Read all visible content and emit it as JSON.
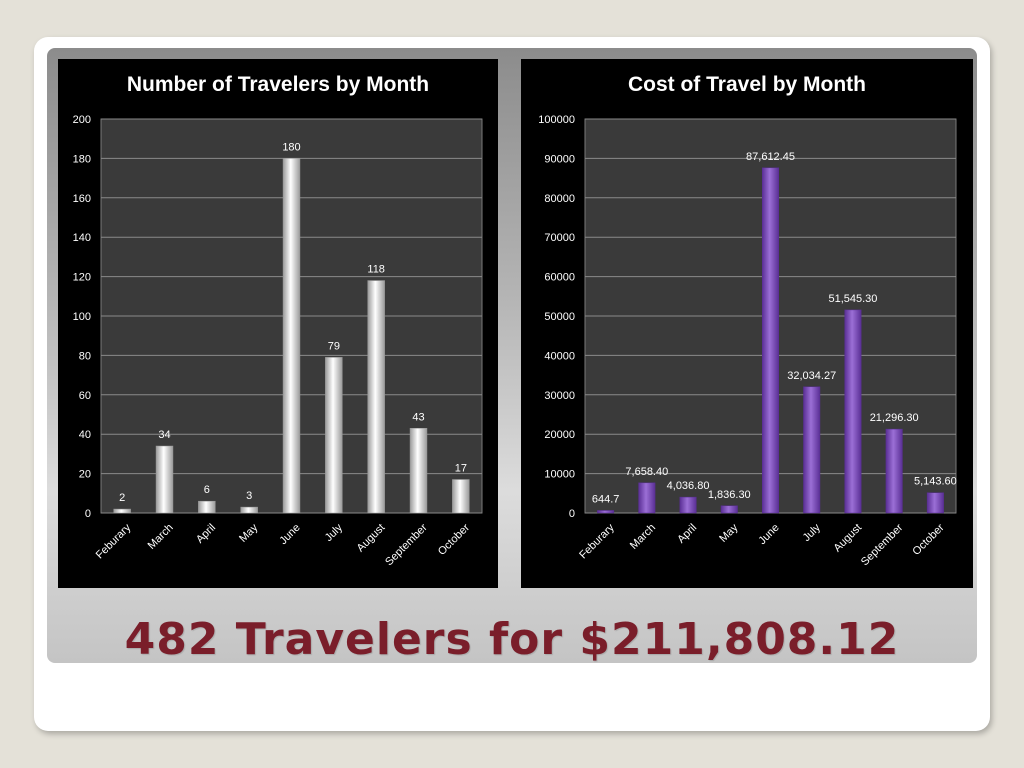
{
  "headline": "482 Travelers for $211,808.12",
  "chart_data": [
    {
      "type": "bar",
      "title": "Number of Travelers by Month",
      "xlabel": "",
      "ylabel": "",
      "categories": [
        "Feburary",
        "March",
        "April",
        "May",
        "June",
        "July",
        "August",
        "September",
        "October"
      ],
      "values": [
        2,
        34,
        6,
        3,
        180,
        79,
        118,
        43,
        17
      ],
      "data_labels": [
        "2",
        "34",
        "6",
        "3",
        "180",
        "79",
        "118",
        "43",
        "17"
      ],
      "ylim": [
        0,
        200
      ],
      "yticks": [
        0,
        20,
        40,
        60,
        80,
        100,
        120,
        140,
        160,
        180,
        200
      ],
      "grid": true,
      "bar_color": "#ffffff",
      "bar_color_dark": "#9a9a9a",
      "background": "#000000",
      "plot_background": "#3a3a3a"
    },
    {
      "type": "bar",
      "title": "Cost of Travel by Month",
      "xlabel": "",
      "ylabel": "",
      "categories": [
        "Feburary",
        "March",
        "April",
        "May",
        "June",
        "July",
        "August",
        "September",
        "October"
      ],
      "values": [
        644.7,
        7658.4,
        4036.8,
        1836.3,
        87612.45,
        32034.27,
        51545.3,
        21296.3,
        5143.6
      ],
      "data_labels": [
        "644.7",
        "7,658.40",
        "4,036.80",
        "1,836.30",
        "87,612.45",
        "32,034.27",
        "51,545.30",
        "21,296.30",
        "5,143.60"
      ],
      "ylim": [
        0,
        100000
      ],
      "yticks": [
        0,
        10000,
        20000,
        30000,
        40000,
        50000,
        60000,
        70000,
        80000,
        90000,
        100000
      ],
      "grid": true,
      "bar_color": "#9b6fd6",
      "bar_color_dark": "#5a2f95",
      "background": "#000000",
      "plot_background": "#3a3a3a"
    }
  ]
}
